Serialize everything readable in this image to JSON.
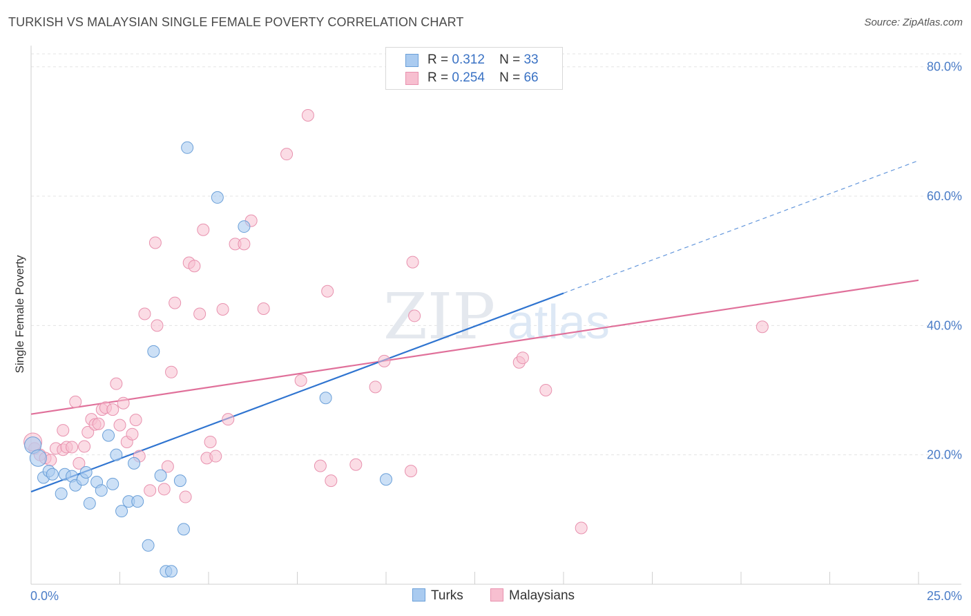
{
  "title": "TURKISH VS MALAYSIAN SINGLE FEMALE POVERTY CORRELATION CHART",
  "source": "Source: ZipAtlas.com",
  "watermark": {
    "zip": "ZIP",
    "atlas": "atlas"
  },
  "legend": {
    "turks": {
      "r_label": "R =",
      "r_value": "0.312",
      "n_label": "N =",
      "n_value": "33"
    },
    "malaysians": {
      "r_label": "R =",
      "r_value": "0.254",
      "n_label": "N =",
      "n_value": "66"
    }
  },
  "bottom_legend": {
    "turks": "Turks",
    "malaysians": "Malaysians"
  },
  "colors": {
    "turks_fill": "#aacbf0",
    "turks_stroke": "#6a9fd8",
    "turks_line": "#2f74d0",
    "malaysians_fill": "#f7bfd0",
    "malaysians_stroke": "#e891ae",
    "malaysians_line": "#e0709a",
    "tick_text": "#4a7cc7",
    "grid": "#e3e3e3"
  },
  "chart_data": {
    "type": "scatter",
    "title": "TURKISH VS MALAYSIAN SINGLE FEMALE POVERTY CORRELATION CHART",
    "xlabel": "",
    "ylabel": "Single Female Poverty",
    "xlim": [
      0,
      25
    ],
    "ylim": [
      0,
      82
    ],
    "x_tick_labels": [
      "0.0%",
      "25.0%"
    ],
    "y_ticks": [
      20,
      40,
      60,
      80
    ],
    "y_tick_labels": [
      "20.0%",
      "40.0%",
      "60.0%",
      "80.0%"
    ],
    "grid": true,
    "legend_position": "top-center",
    "series": [
      {
        "name": "Turks",
        "r": 0.312,
        "n": 33,
        "trend": {
          "x0": 0,
          "y0": 14.3,
          "x1": 15,
          "y1": 45.0,
          "dashed_to_x": 25,
          "dashed_y1": 65.5
        },
        "points": [
          [
            0.05,
            21.5
          ],
          [
            0.2,
            19.5
          ],
          [
            0.35,
            16.5
          ],
          [
            0.5,
            17.5
          ],
          [
            0.6,
            17.0
          ],
          [
            0.85,
            14.0
          ],
          [
            0.95,
            17.0
          ],
          [
            1.15,
            16.7
          ],
          [
            1.25,
            15.3
          ],
          [
            1.45,
            16.2
          ],
          [
            1.55,
            17.3
          ],
          [
            1.65,
            12.5
          ],
          [
            1.85,
            15.8
          ],
          [
            1.98,
            14.5
          ],
          [
            2.18,
            23.0
          ],
          [
            2.3,
            15.5
          ],
          [
            2.4,
            20.0
          ],
          [
            2.55,
            11.3
          ],
          [
            2.75,
            12.8
          ],
          [
            2.9,
            18.7
          ],
          [
            3.0,
            12.8
          ],
          [
            3.3,
            6.0
          ],
          [
            3.45,
            36.0
          ],
          [
            3.65,
            16.8
          ],
          [
            3.8,
            2.0
          ],
          [
            3.95,
            2.0
          ],
          [
            4.2,
            16.0
          ],
          [
            4.3,
            8.5
          ],
          [
            4.4,
            67.5
          ],
          [
            5.25,
            59.8
          ],
          [
            6.0,
            55.3
          ],
          [
            8.3,
            28.8
          ],
          [
            10.0,
            16.2
          ]
        ]
      },
      {
        "name": "Malaysians",
        "r": 0.254,
        "n": 66,
        "trend": {
          "x0": 0,
          "y0": 26.3,
          "x1": 25,
          "y1": 47.0
        },
        "points": [
          [
            0.1,
            21.0
          ],
          [
            0.25,
            20.0
          ],
          [
            0.4,
            19.5
          ],
          [
            0.55,
            19.2
          ],
          [
            0.7,
            21.0
          ],
          [
            0.9,
            20.8
          ],
          [
            0.9,
            23.8
          ],
          [
            1.0,
            21.2
          ],
          [
            1.15,
            21.2
          ],
          [
            1.25,
            28.2
          ],
          [
            1.35,
            18.7
          ],
          [
            1.5,
            21.3
          ],
          [
            1.6,
            23.5
          ],
          [
            1.7,
            25.5
          ],
          [
            1.8,
            24.7
          ],
          [
            1.9,
            24.8
          ],
          [
            2.0,
            27.0
          ],
          [
            2.1,
            27.3
          ],
          [
            2.3,
            27.0
          ],
          [
            2.4,
            31.0
          ],
          [
            2.5,
            24.6
          ],
          [
            2.6,
            28.0
          ],
          [
            2.7,
            22.0
          ],
          [
            2.85,
            23.2
          ],
          [
            2.95,
            25.4
          ],
          [
            3.05,
            19.8
          ],
          [
            3.2,
            41.8
          ],
          [
            3.35,
            14.5
          ],
          [
            3.5,
            52.8
          ],
          [
            3.55,
            40.0
          ],
          [
            3.75,
            14.7
          ],
          [
            3.85,
            18.2
          ],
          [
            3.95,
            32.8
          ],
          [
            4.05,
            43.5
          ],
          [
            4.35,
            13.5
          ],
          [
            4.45,
            49.7
          ],
          [
            4.6,
            49.2
          ],
          [
            4.75,
            41.8
          ],
          [
            4.85,
            54.8
          ],
          [
            4.95,
            19.5
          ],
          [
            5.05,
            22.0
          ],
          [
            5.2,
            19.8
          ],
          [
            5.4,
            42.5
          ],
          [
            5.55,
            25.5
          ],
          [
            5.75,
            52.6
          ],
          [
            6.0,
            52.6
          ],
          [
            6.2,
            56.2
          ],
          [
            6.55,
            42.6
          ],
          [
            7.2,
            66.5
          ],
          [
            7.6,
            31.5
          ],
          [
            7.8,
            72.5
          ],
          [
            8.15,
            18.3
          ],
          [
            8.35,
            45.3
          ],
          [
            8.45,
            16.0
          ],
          [
            9.15,
            18.5
          ],
          [
            9.7,
            30.5
          ],
          [
            9.95,
            34.5
          ],
          [
            10.7,
            17.5
          ],
          [
            10.75,
            49.8
          ],
          [
            10.8,
            41.5
          ],
          [
            13.75,
            34.3
          ],
          [
            13.85,
            35.0
          ],
          [
            14.5,
            30.0
          ],
          [
            15.5,
            8.7
          ],
          [
            20.6,
            39.8
          ],
          [
            0.05,
            22.0
          ]
        ]
      }
    ]
  }
}
